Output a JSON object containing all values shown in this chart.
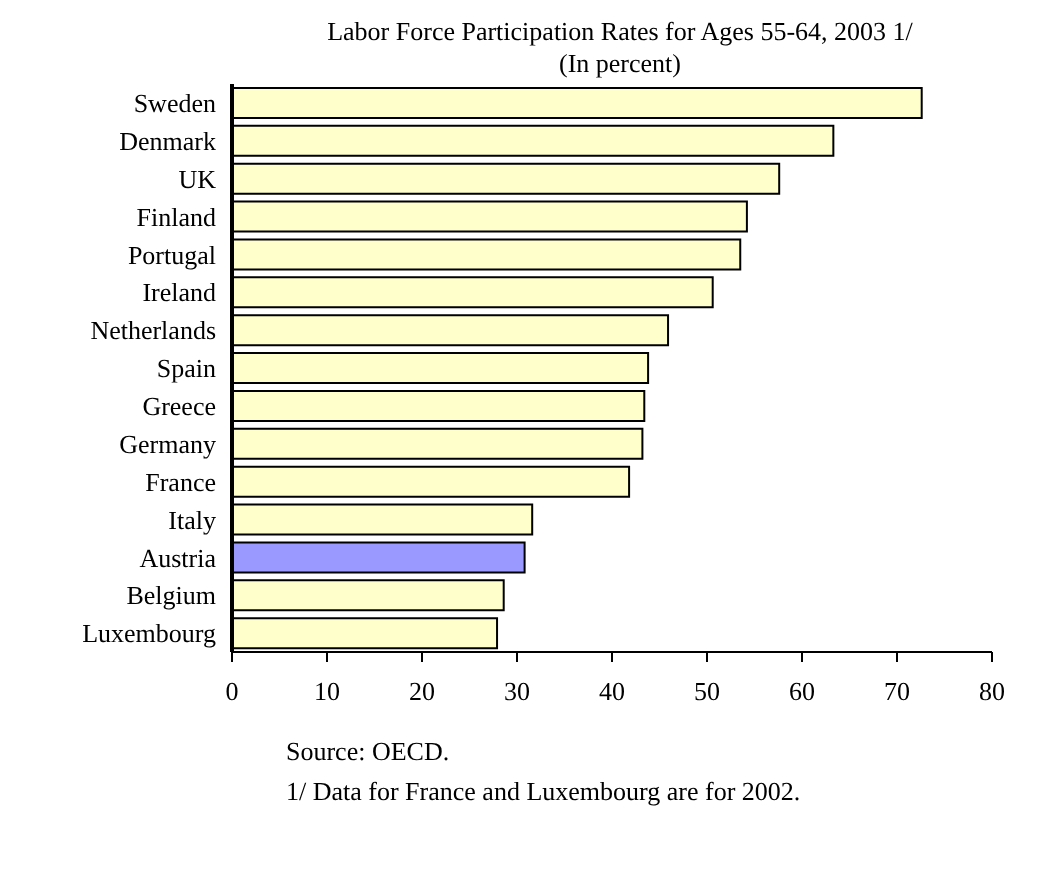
{
  "chart_data": {
    "type": "bar",
    "orientation": "horizontal",
    "title": "Labor Force Participation Rates for Ages 55-64, 2003 1/",
    "subtitle": "(In percent)",
    "categories": [
      "Sweden",
      "Denmark",
      "UK",
      "Finland",
      "Portugal",
      "Ireland",
      "Netherlands",
      "Spain",
      "Greece",
      "Germany",
      "France",
      "Italy",
      "Austria",
      "Belgium",
      "Luxembourg"
    ],
    "values": [
      72.6,
      63.3,
      57.6,
      54.2,
      53.5,
      50.6,
      45.9,
      43.8,
      43.4,
      43.2,
      41.8,
      31.6,
      30.8,
      28.6,
      27.9
    ],
    "colors": [
      "#ffffcc",
      "#ffffcc",
      "#ffffcc",
      "#ffffcc",
      "#ffffcc",
      "#ffffcc",
      "#ffffcc",
      "#ffffcc",
      "#ffffcc",
      "#ffffcc",
      "#ffffcc",
      "#ffffcc",
      "#9999ff",
      "#ffffcc",
      "#ffffcc"
    ],
    "xlim": [
      0,
      80
    ],
    "xticks": [
      0,
      10,
      20,
      30,
      40,
      50,
      60,
      70,
      80
    ],
    "grid": false,
    "legend": false,
    "annotations": [
      "Source: OECD.",
      "1/ Data for France and Luxembourg are for 2002."
    ]
  }
}
